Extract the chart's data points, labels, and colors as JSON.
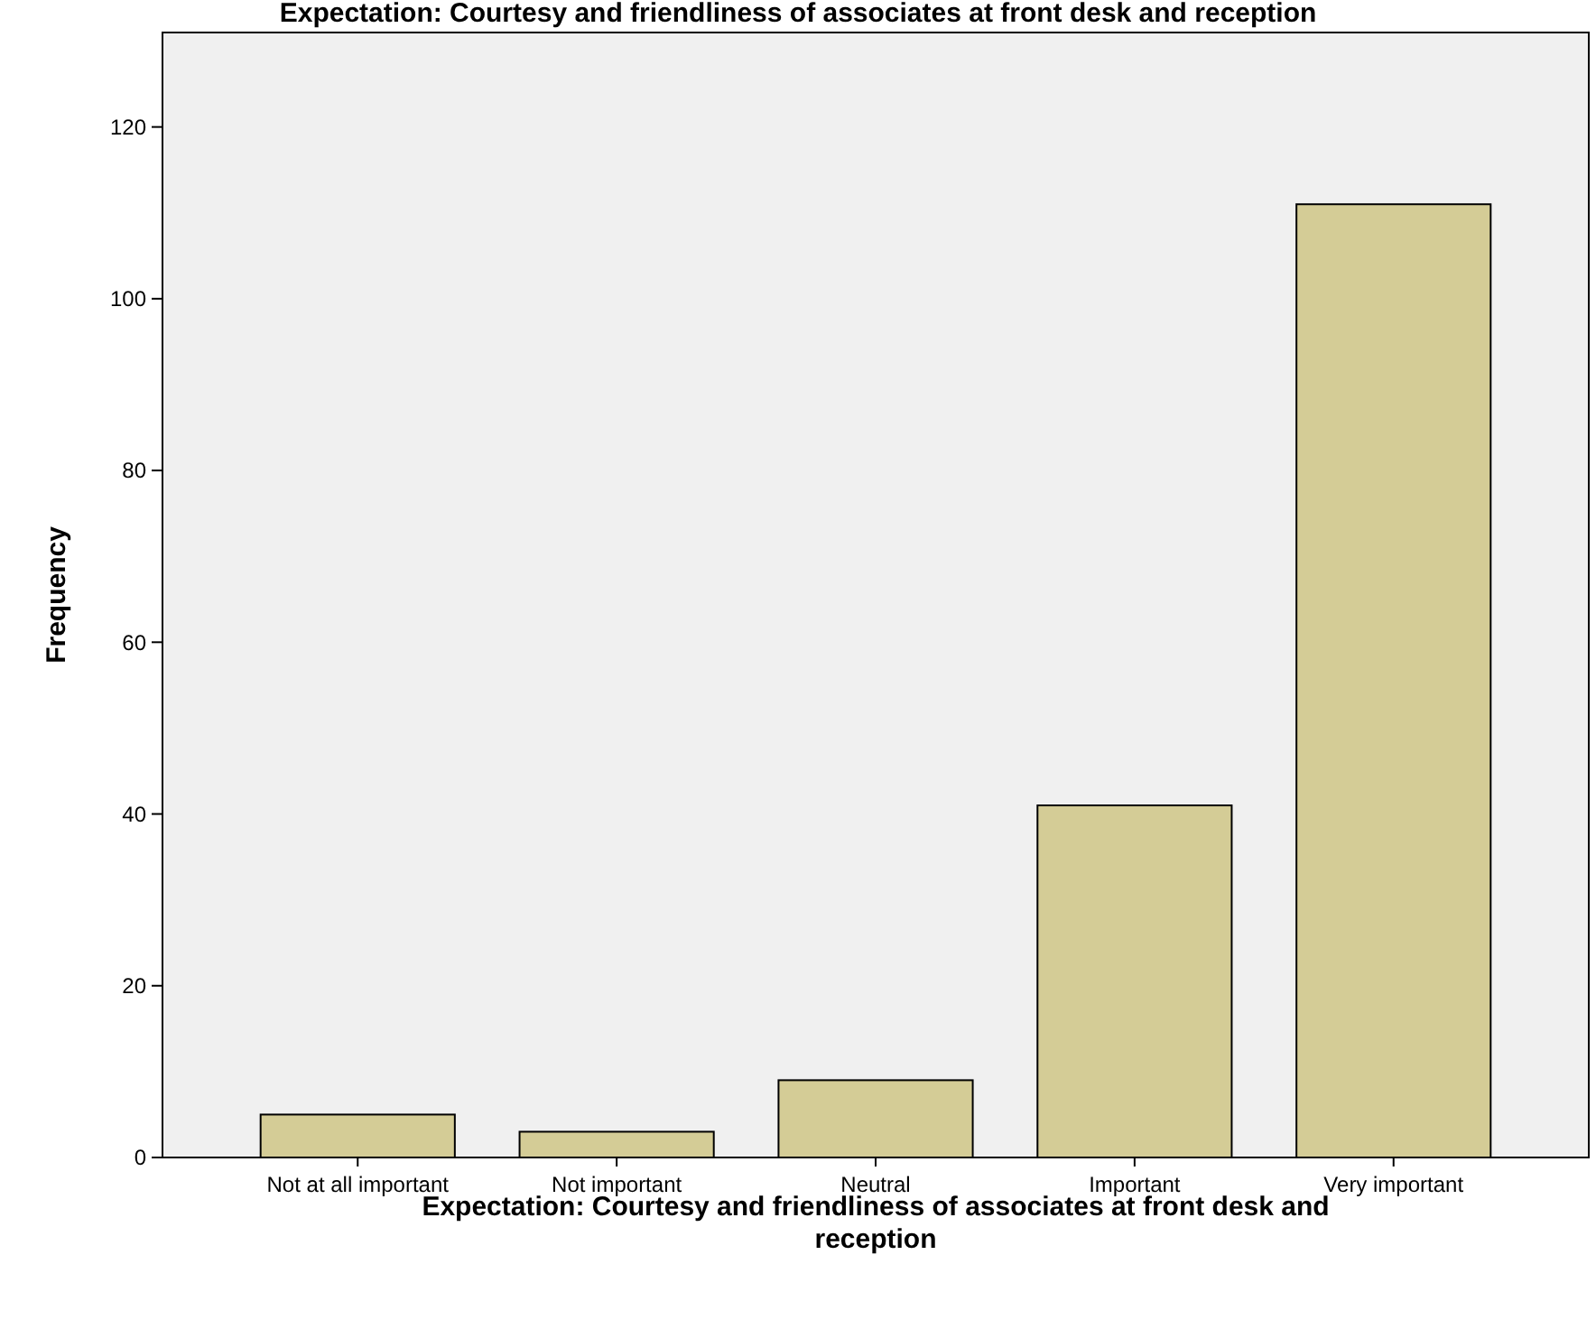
{
  "chart_data": {
    "type": "bar",
    "title": "Expectation: Courtesy and friendliness of associates at front desk and reception",
    "xlabel": "Expectation: Courtesy and friendliness of associates at front desk and reception",
    "ylabel": "Frequency",
    "categories": [
      "Not at all important",
      "Not important",
      "Neutral",
      "Important",
      "Very important"
    ],
    "values": [
      5,
      3,
      9,
      41,
      111
    ],
    "color": "#d4cc96",
    "ylim": [
      0,
      131
    ],
    "yticks": [
      0,
      20,
      40,
      60,
      80,
      100,
      120
    ],
    "grid": false
  }
}
